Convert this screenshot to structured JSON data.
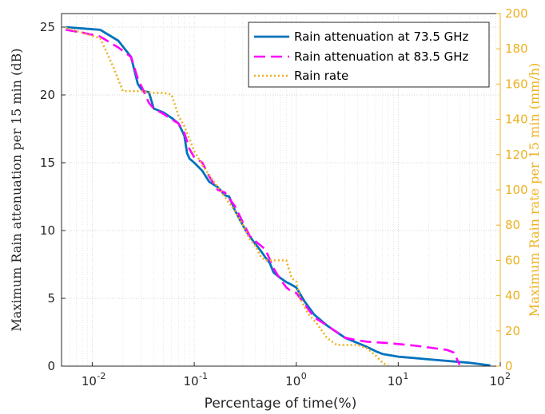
{
  "chart_data": {
    "type": "line",
    "xlabel": "Percentage of time(%)",
    "ylabel": "Maximum Rain attenuation per 15 min (dB)",
    "y2label": "Maximum Rain rate per 15 min (mm/h)",
    "xscale": "log",
    "xlim": [
      0.005,
      100
    ],
    "ylim": [
      0,
      26
    ],
    "y2lim": [
      0,
      200
    ],
    "x_ticks": [
      0.01,
      0.1,
      1,
      10,
      100
    ],
    "x_tick_labels": [
      "10",
      "10",
      "10",
      "10",
      "10"
    ],
    "x_tick_exponents": [
      "-2",
      "-1",
      "0",
      "1",
      "2"
    ],
    "y_ticks": [
      0,
      5,
      10,
      15,
      20,
      25
    ],
    "y2_ticks": [
      0,
      20,
      40,
      60,
      80,
      100,
      120,
      140,
      160,
      180,
      200
    ],
    "grid": true,
    "legend_position": "top-right",
    "colors": {
      "left_axis": "#262626",
      "right_axis": "#EDB120"
    },
    "series": [
      {
        "name": "Rain attenuation at 73.5 GHz",
        "axis": "left",
        "color": "#0072BD",
        "style": "solid",
        "x": [
          0.0055,
          0.008,
          0.012,
          0.018,
          0.024,
          0.028,
          0.031,
          0.036,
          0.04,
          0.05,
          0.06,
          0.07,
          0.08,
          0.085,
          0.09,
          0.1,
          0.12,
          0.14,
          0.17,
          0.2,
          0.22,
          0.25,
          0.28,
          0.32,
          0.38,
          0.45,
          0.5,
          0.55,
          0.6,
          0.7,
          0.8,
          0.9,
          1.0,
          1.2,
          1.5,
          2.0,
          3.0,
          4.0,
          5.0,
          6.0,
          7.0,
          10,
          20,
          50,
          80
        ],
        "y": [
          25.0,
          24.9,
          24.8,
          24.0,
          22.8,
          20.8,
          20.3,
          20.2,
          19.0,
          18.7,
          18.3,
          17.9,
          17.0,
          15.7,
          15.3,
          15.0,
          14.4,
          13.6,
          13.2,
          12.6,
          12.5,
          11.5,
          10.8,
          10.0,
          9.2,
          8.5,
          8.0,
          7.6,
          6.9,
          6.5,
          6.2,
          6.0,
          5.8,
          4.8,
          3.8,
          3.0,
          2.1,
          1.7,
          1.4,
          1.1,
          0.9,
          0.7,
          0.5,
          0.25,
          0.05
        ]
      },
      {
        "name": "Rain attenuation at 83.5 GHz",
        "axis": "left",
        "color": "#FF00FF",
        "style": "dashed",
        "x": [
          0.0055,
          0.008,
          0.012,
          0.018,
          0.024,
          0.028,
          0.031,
          0.036,
          0.04,
          0.05,
          0.06,
          0.07,
          0.08,
          0.09,
          0.1,
          0.12,
          0.14,
          0.17,
          0.2,
          0.25,
          0.3,
          0.35,
          0.4,
          0.5,
          0.6,
          0.7,
          0.8,
          0.9,
          1.0,
          1.2,
          1.5,
          2.0,
          3.0,
          4.0,
          5.0,
          8.0,
          15,
          30,
          35,
          40
        ],
        "y": [
          24.8,
          24.6,
          24.3,
          23.5,
          22.8,
          21.2,
          20.5,
          19.4,
          19.0,
          18.6,
          18.2,
          17.9,
          17.2,
          16.0,
          15.4,
          15.0,
          14.0,
          13.0,
          12.8,
          11.8,
          10.6,
          9.6,
          9.2,
          8.6,
          7.2,
          6.4,
          5.8,
          5.5,
          5.4,
          4.6,
          3.6,
          3.0,
          2.1,
          1.9,
          1.8,
          1.7,
          1.5,
          1.2,
          1.0,
          0.1
        ]
      },
      {
        "name": "Rain rate",
        "axis": "right",
        "color": "#EDB120",
        "style": "dotted",
        "x": [
          0.0055,
          0.012,
          0.016,
          0.02,
          0.03,
          0.04,
          0.05,
          0.06,
          0.07,
          0.08,
          0.1,
          0.12,
          0.15,
          0.2,
          0.25,
          0.3,
          0.35,
          0.4,
          0.45,
          0.5,
          0.6,
          0.7,
          0.8,
          0.9,
          1.0,
          1.1,
          1.3,
          1.6,
          2.0,
          2.5,
          2.8,
          3.2,
          4.0,
          5.0,
          6.0,
          7.0,
          8.0
        ],
        "y": [
          192,
          186,
          170,
          156,
          156,
          155,
          155,
          154,
          142,
          136,
          122,
          114,
          106,
          96,
          88,
          80,
          72,
          68,
          62,
          60,
          60,
          60,
          60,
          50,
          48,
          38,
          30,
          24,
          16,
          12,
          12,
          12,
          12,
          10,
          6,
          2,
          0
        ]
      }
    ]
  }
}
